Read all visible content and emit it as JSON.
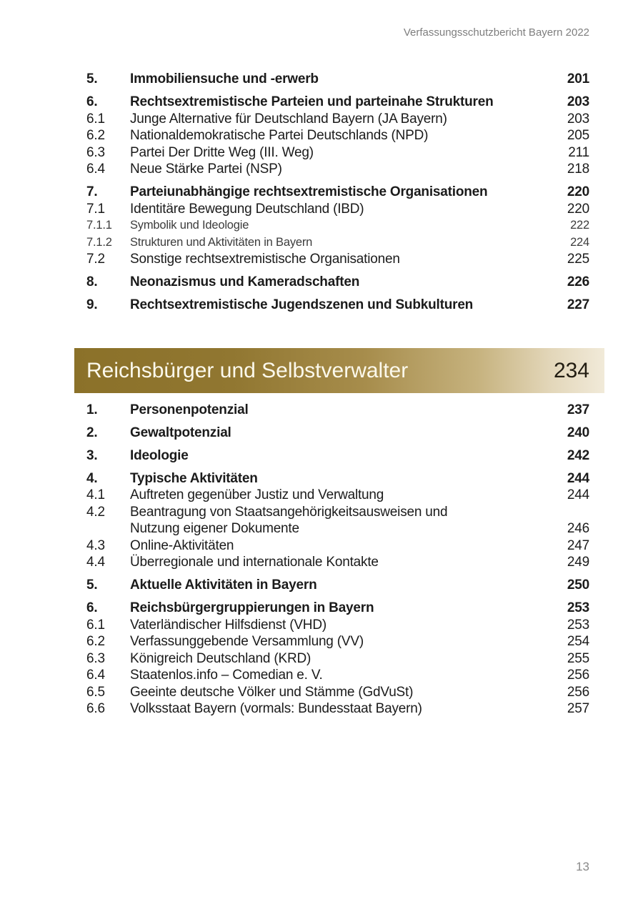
{
  "header": {
    "document_title": "Verfassungsschutzbericht Bayern 2022"
  },
  "chapter_banner": {
    "title": "Reichsbürger und Selbstverwalter",
    "page": "234",
    "gradient_start_color": "#8b7129",
    "gradient_end_color": "#f1ead9",
    "title_color": "#fcf9ec"
  },
  "toc": {
    "groups_top": [
      {
        "entries": [
          {
            "num": "5.",
            "title": "Immobiliensuche und -erwerb",
            "page": "201",
            "level": 1
          }
        ]
      },
      {
        "entries": [
          {
            "num": "6.",
            "title": "Rechtsextremistische Parteien und parteinahe Strukturen",
            "page": "203",
            "level": 1
          },
          {
            "num": "6.1",
            "title": "Junge Alternative für Deutschland Bayern (JA Bayern)",
            "page": "203",
            "level": 2
          },
          {
            "num": "6.2",
            "title": "Nationaldemokratische Partei Deutschlands (NPD)",
            "page": "205",
            "level": 2
          },
          {
            "num": "6.3",
            "title": "Partei Der Dritte Weg (III. Weg)",
            "page": "211",
            "level": 2
          },
          {
            "num": "6.4",
            "title": "Neue Stärke Partei (NSP)",
            "page": "218",
            "level": 2
          }
        ]
      },
      {
        "entries": [
          {
            "num": "7.",
            "title": "Parteiunabhängige rechtsextremistische Organisationen",
            "page": "220",
            "level": 1
          },
          {
            "num": "7.1",
            "title": "Identitäre Bewegung Deutschland (IBD)",
            "page": "220",
            "level": 2
          },
          {
            "num": "7.1.1",
            "title": "Symbolik und Ideologie",
            "page": "222",
            "level": 3
          },
          {
            "num": "7.1.2",
            "title": "Strukturen und Aktivitäten in Bayern",
            "page": "224",
            "level": 3
          },
          {
            "num": "7.2",
            "title": "Sonstige rechtsextremistische Organisationen",
            "page": "225",
            "level": 2
          }
        ]
      },
      {
        "entries": [
          {
            "num": "8.",
            "title": "Neonazismus und Kameradschaften",
            "page": "226",
            "level": 1
          }
        ]
      },
      {
        "entries": [
          {
            "num": "9.",
            "title": "Rechtsextremistische Jugendszenen und Subkulturen",
            "page": "227",
            "level": 1
          }
        ]
      }
    ],
    "groups_bottom": [
      {
        "entries": [
          {
            "num": "1.",
            "title": "Personenpotenzial",
            "page": "237",
            "level": 1
          }
        ]
      },
      {
        "entries": [
          {
            "num": "2.",
            "title": "Gewaltpotenzial",
            "page": "240",
            "level": 1
          }
        ]
      },
      {
        "entries": [
          {
            "num": "3.",
            "title": "Ideologie",
            "page": "242",
            "level": 1
          }
        ]
      },
      {
        "entries": [
          {
            "num": "4.",
            "title": "Typische Aktivitäten",
            "page": "244",
            "level": 1
          },
          {
            "num": "4.1",
            "title": "Auftreten gegenüber Justiz und Verwaltung",
            "page": "244",
            "level": 2
          },
          {
            "num": "4.2",
            "lines": [
              "Beantragung von Staatsangehörigkeitsausweisen und",
              "Nutzung eigener Dokumente"
            ],
            "page": "246",
            "level": 2
          },
          {
            "num": "4.3",
            "title": "Online-Aktivitäten",
            "page": "247",
            "level": 2
          },
          {
            "num": "4.4",
            "title": "Überregionale und internationale Kontakte",
            "page": "249",
            "level": 2
          }
        ]
      },
      {
        "entries": [
          {
            "num": "5.",
            "title": "Aktuelle Aktivitäten in Bayern",
            "page": "250",
            "level": 1
          }
        ]
      },
      {
        "entries": [
          {
            "num": "6.",
            "title": "Reichsbürgergruppierungen in Bayern",
            "page": "253",
            "level": 1
          },
          {
            "num": "6.1",
            "title": "Vaterländischer Hilfsdienst (VHD)",
            "page": "253",
            "level": 2
          },
          {
            "num": "6.2",
            "title": "Verfassunggebende Versammlung (VV)",
            "page": "254",
            "level": 2
          },
          {
            "num": "6.3",
            "title": "Königreich Deutschland (KRD)",
            "page": "255",
            "level": 2
          },
          {
            "num": "6.4",
            "title": "Staatenlos.info – Comedian e. V.",
            "page": "256",
            "level": 2
          },
          {
            "num": "6.5",
            "title": "Geeinte deutsche Völker und Stämme (GdVuSt)",
            "page": "256",
            "level": 2
          },
          {
            "num": "6.6",
            "title": "Volksstaat Bayern (vormals: Bundesstaat Bayern)",
            "page": "257",
            "level": 2
          }
        ]
      }
    ]
  },
  "footer": {
    "page_number": "13"
  }
}
